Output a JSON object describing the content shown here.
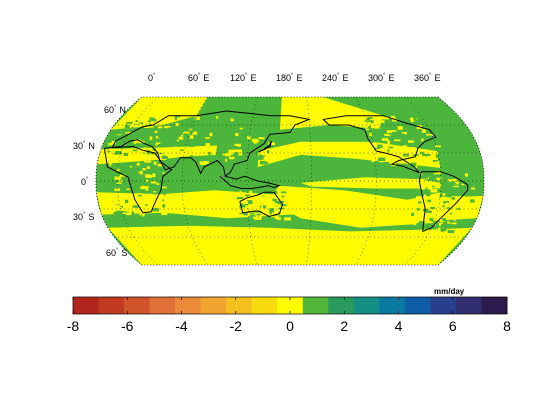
{
  "longitude_labels": [
    {
      "deg": "0",
      "dir": ""
    },
    {
      "deg": "60",
      "dir": "E"
    },
    {
      "deg": "120",
      "dir": "E"
    },
    {
      "deg": "180",
      "dir": "E"
    },
    {
      "deg": "240",
      "dir": "E"
    },
    {
      "deg": "300",
      "dir": "E"
    },
    {
      "deg": "360",
      "dir": "E"
    }
  ],
  "latitude_labels": [
    {
      "deg": "60",
      "dir": "N"
    },
    {
      "deg": "30",
      "dir": "N"
    },
    {
      "deg": "0",
      "dir": ""
    },
    {
      "deg": "30",
      "dir": "S"
    },
    {
      "deg": "60",
      "dir": "S"
    }
  ],
  "colorbar": {
    "unit": "mm/day",
    "ticks": [
      "-8",
      "-6",
      "-4",
      "-2",
      "0",
      "2",
      "4",
      "6",
      "8"
    ],
    "range": [
      -8,
      8
    ],
    "colors": [
      "#b3261e",
      "#c23a22",
      "#d0542a",
      "#e07038",
      "#ea8b3a",
      "#efa530",
      "#f4c01e",
      "#f9dc10",
      "#fffc00",
      "#53b53a",
      "#2b9a5e",
      "#138f85",
      "#0a7aa1",
      "#0f5ea5",
      "#283f8c",
      "#302e6e",
      "#2d1b4e"
    ]
  },
  "map_colors": {
    "positive": "#4cb53c",
    "negative": "#fffc00",
    "coast": "#000000",
    "wet_edge": "#1e7aa4"
  }
}
